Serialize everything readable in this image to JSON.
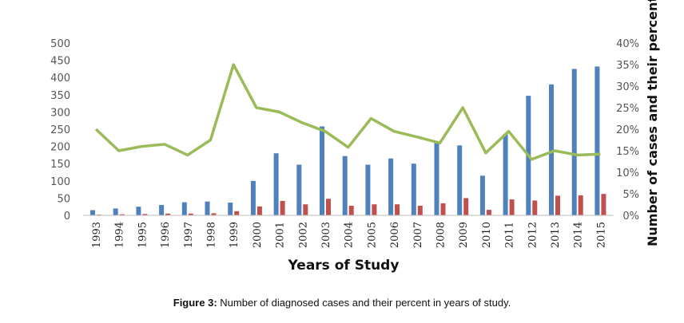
{
  "caption": {
    "label": "Figure 3:",
    "text": "Number of diagnosed cases and their percent in years of study."
  },
  "chart_data": {
    "type": "bar",
    "xlabel": "Years of Study",
    "ylabel_right": "Number of cases and their percent",
    "ylim_left": [
      0,
      500
    ],
    "yticks_left": [
      "0",
      "50",
      "100",
      "150",
      "200",
      "250",
      "300",
      "350",
      "400",
      "450",
      "500"
    ],
    "ylim_right": [
      0,
      40
    ],
    "yticks_right": [
      "0%",
      "5%",
      "10%",
      "15%",
      "20%",
      "25%",
      "30%",
      "35%",
      "40%"
    ],
    "grid": false,
    "categories": [
      "1993",
      "1994",
      "1995",
      "1996",
      "1997",
      "1998",
      "1999",
      "2000",
      "2001",
      "2002",
      "2003",
      "2004",
      "2005",
      "2006",
      "2007",
      "2008",
      "2009",
      "2010",
      "2011",
      "2012",
      "2013",
      "2014",
      "2015"
    ],
    "series": [
      {
        "kind": "bar",
        "axis": "left",
        "color": "#4f81bd",
        "values": [
          15,
          20,
          25,
          30,
          38,
          40,
          37,
          100,
          180,
          147,
          258,
          172,
          147,
          165,
          150,
          210,
          203,
          115,
          235,
          347,
          380,
          425,
          432
        ]
      },
      {
        "kind": "bar",
        "axis": "left",
        "color": "#c0504d",
        "values": [
          2,
          3,
          4,
          5,
          5,
          6,
          12,
          26,
          42,
          32,
          48,
          28,
          32,
          32,
          28,
          35,
          50,
          16,
          46,
          43,
          57,
          58,
          62
        ]
      },
      {
        "kind": "line",
        "axis": "right",
        "color": "#9bbb59",
        "values": [
          20.0,
          15.0,
          16.0,
          16.5,
          14.0,
          17.5,
          35.0,
          25.0,
          24.0,
          21.5,
          19.5,
          15.8,
          22.5,
          19.5,
          18.2,
          16.8,
          25.0,
          14.5,
          19.5,
          13.0,
          15.0,
          14.0,
          14.2
        ]
      }
    ]
  }
}
